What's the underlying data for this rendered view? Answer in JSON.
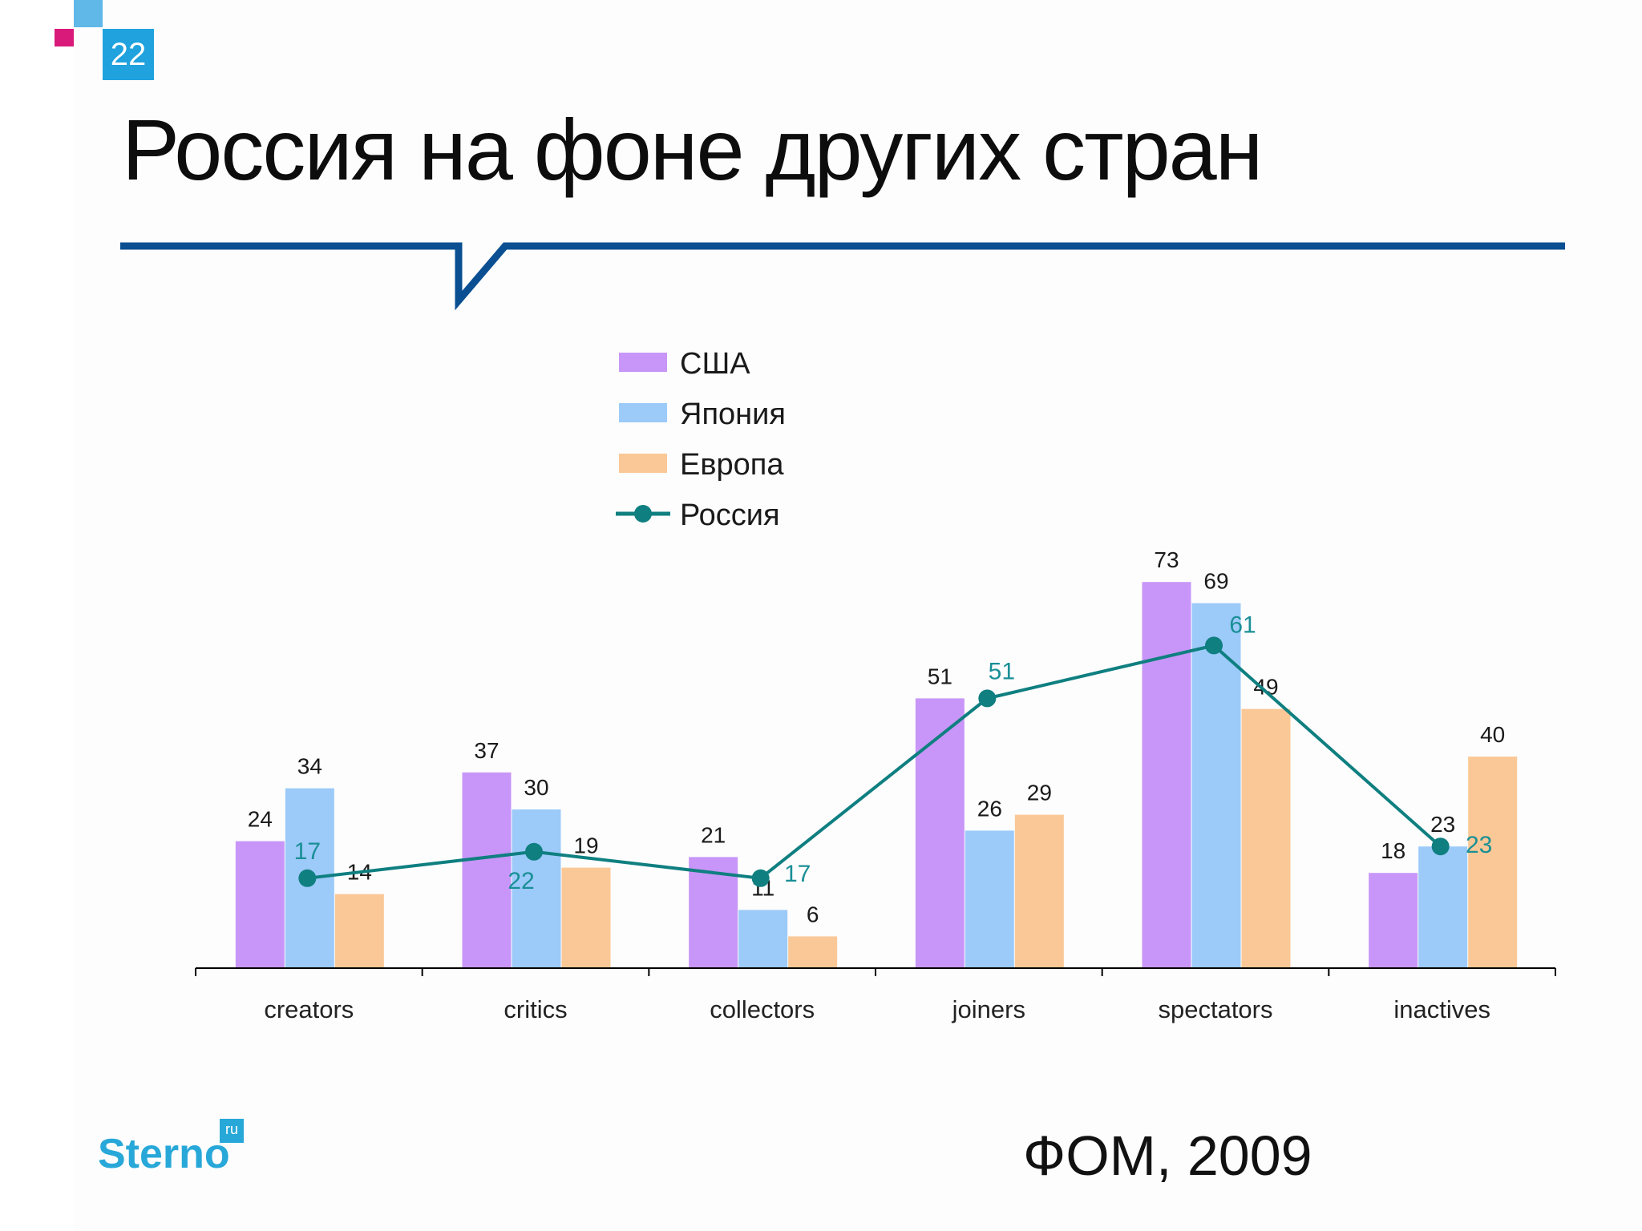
{
  "slide": {
    "page_number": "22",
    "title": "Россия на фоне других стран",
    "source": "ФОМ, 2009",
    "logo_text": "Sterno",
    "logo_badge": "ru"
  },
  "colors": {
    "usa": "#c896f8",
    "japan": "#9ccaf9",
    "europe": "#fac896",
    "russia": "#0f7f80",
    "russia_label": "#1a8f96",
    "accent_blue": "#1fa2de",
    "accent_pink": "#d91a7a",
    "rule": "#0a4f91"
  },
  "chart_data": {
    "type": "bar",
    "categories": [
      "creators",
      "critics",
      "collectors",
      "joiners",
      "spectators",
      "inactives"
    ],
    "series": [
      {
        "name": "США",
        "kind": "bar",
        "values": [
          24,
          37,
          21,
          51,
          73,
          18
        ]
      },
      {
        "name": "Япония",
        "kind": "bar",
        "values": [
          34,
          30,
          11,
          26,
          69,
          23
        ]
      },
      {
        "name": "Европа",
        "kind": "bar",
        "values": [
          14,
          19,
          6,
          29,
          49,
          40
        ]
      },
      {
        "name": "Россия",
        "kind": "line",
        "values": [
          17,
          22,
          17,
          51,
          61,
          23
        ]
      }
    ],
    "ylim": [
      0,
      80
    ],
    "legend_position": "top-center",
    "grid": false
  }
}
